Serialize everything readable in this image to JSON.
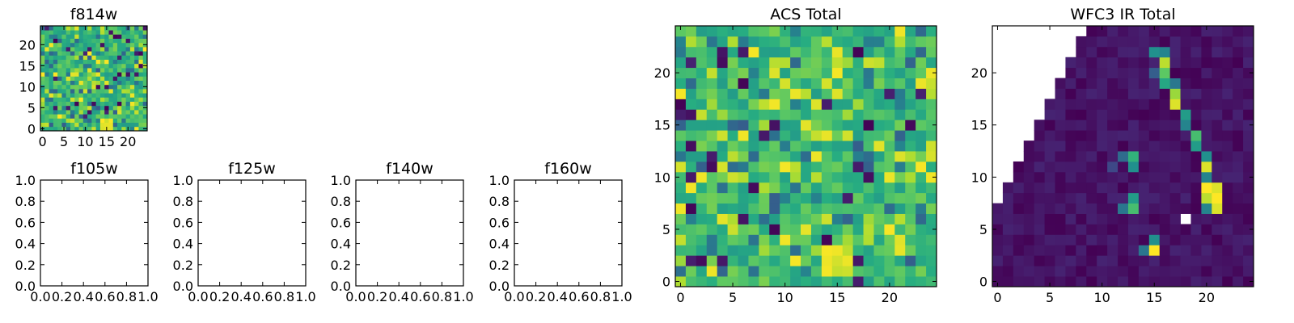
{
  "chart_data": [
    {
      "id": "f814w",
      "type": "heatmap",
      "title": "f814w",
      "grid_size": 25,
      "xlim": [
        -0.5,
        24.5
      ],
      "ylim": [
        -0.5,
        24.5
      ],
      "xticks": [
        0,
        5,
        10,
        15,
        20
      ],
      "yticks": [
        0,
        5,
        10,
        15,
        20
      ],
      "colormap": "viridis",
      "missing_region": "none",
      "values": "pseudo-random noise, mostly 0.55-0.85 of colour scale with sparse low (dark purple) pixels and a bright yellow clump near x=15, y=1"
    },
    {
      "id": "f105w",
      "type": "empty",
      "title": "f105w",
      "xlim": [
        0.0,
        1.0
      ],
      "ylim": [
        0.0,
        1.0
      ],
      "xticks": [
        "0.0",
        "0.2",
        "0.4",
        "0.6",
        "0.8",
        "1.0"
      ],
      "yticks": [
        "0.0",
        "0.2",
        "0.4",
        "0.6",
        "0.8",
        "1.0"
      ]
    },
    {
      "id": "f125w",
      "type": "empty",
      "title": "f125w",
      "xlim": [
        0.0,
        1.0
      ],
      "ylim": [
        0.0,
        1.0
      ],
      "xticks": [
        "0.0",
        "0.2",
        "0.4",
        "0.6",
        "0.8",
        "1.0"
      ],
      "yticks": [
        "0.0",
        "0.2",
        "0.4",
        "0.6",
        "0.8",
        "1.0"
      ]
    },
    {
      "id": "f140w",
      "type": "empty",
      "title": "f140w",
      "xlim": [
        0.0,
        1.0
      ],
      "ylim": [
        0.0,
        1.0
      ],
      "xticks": [
        "0.0",
        "0.2",
        "0.4",
        "0.6",
        "0.8",
        "1.0"
      ],
      "yticks": [
        "0.0",
        "0.2",
        "0.4",
        "0.6",
        "0.8",
        "1.0"
      ]
    },
    {
      "id": "f160w",
      "type": "empty",
      "title": "f160w",
      "xlim": [
        0.0,
        1.0
      ],
      "ylim": [
        0.0,
        1.0
      ],
      "xticks": [
        "0.0",
        "0.2",
        "0.4",
        "0.6",
        "0.8",
        "1.0"
      ],
      "yticks": [
        "0.0",
        "0.2",
        "0.4",
        "0.6",
        "0.8",
        "1.0"
      ]
    },
    {
      "id": "acs",
      "type": "heatmap",
      "title": "ACS Total",
      "grid_size": 25,
      "xlim": [
        -0.5,
        24.5
      ],
      "ylim": [
        -0.5,
        24.5
      ],
      "xticks": [
        0,
        5,
        10,
        15,
        20
      ],
      "yticks": [
        0,
        5,
        10,
        15,
        20
      ],
      "colormap": "viridis",
      "missing_region": "none",
      "values": "pseudo-random noise, mostly green-yellow (0.55-0.85) with sparse dark purple pixels and a yellow clump near x=15, y=2"
    },
    {
      "id": "wfc3",
      "type": "heatmap",
      "title": "WFC3 IR Total",
      "grid_size": 25,
      "xlim": [
        -0.5,
        24.5
      ],
      "ylim": [
        -0.5,
        24.5
      ],
      "xticks": [
        0,
        5,
        10,
        15,
        20
      ],
      "yticks": [
        0,
        5,
        10,
        15,
        20
      ],
      "colormap": "viridis",
      "missing_region": "upper-left triangle (no coverage) plus one blank pixel at x=18, y=6",
      "values": "near-zero background (dark purple) with a bright diagonal arc from (15,22) to (21,7), a blob at (13,12) and (13,8), and a bright pixel at (15,3)",
      "bright_features": [
        {
          "x": 15,
          "y": 22,
          "v": 0.5
        },
        {
          "x": 16,
          "y": 22,
          "v": 0.45
        },
        {
          "x": 16,
          "y": 21,
          "v": 0.9
        },
        {
          "x": 16,
          "y": 20,
          "v": 0.75
        },
        {
          "x": 16,
          "y": 19,
          "v": 0.6
        },
        {
          "x": 17,
          "y": 19,
          "v": 0.4
        },
        {
          "x": 17,
          "y": 18,
          "v": 0.85
        },
        {
          "x": 17,
          "y": 17,
          "v": 0.95
        },
        {
          "x": 18,
          "y": 16,
          "v": 0.55
        },
        {
          "x": 18,
          "y": 15,
          "v": 0.45
        },
        {
          "x": 19,
          "y": 14,
          "v": 0.7
        },
        {
          "x": 19,
          "y": 13,
          "v": 0.55
        },
        {
          "x": 20,
          "y": 12,
          "v": 0.5
        },
        {
          "x": 20,
          "y": 11,
          "v": 0.95
        },
        {
          "x": 20,
          "y": 10,
          "v": 0.45
        },
        {
          "x": 20,
          "y": 9,
          "v": 1.0
        },
        {
          "x": 21,
          "y": 9,
          "v": 0.95
        },
        {
          "x": 20,
          "y": 8,
          "v": 0.9
        },
        {
          "x": 21,
          "y": 8,
          "v": 1.0
        },
        {
          "x": 21,
          "y": 7,
          "v": 0.95
        },
        {
          "x": 20,
          "y": 7,
          "v": 0.45
        },
        {
          "x": 13,
          "y": 12,
          "v": 0.65
        },
        {
          "x": 13,
          "y": 11,
          "v": 0.5
        },
        {
          "x": 12,
          "y": 12,
          "v": 0.35
        },
        {
          "x": 13,
          "y": 8,
          "v": 0.55
        },
        {
          "x": 13,
          "y": 7,
          "v": 0.7
        },
        {
          "x": 12,
          "y": 7,
          "v": 0.4
        },
        {
          "x": 15,
          "y": 3,
          "v": 1.0
        },
        {
          "x": 15,
          "y": 4,
          "v": 0.5
        },
        {
          "x": 14,
          "y": 3,
          "v": 0.4
        },
        {
          "x": 11,
          "y": 11,
          "v": 0.22
        },
        {
          "x": 15,
          "y": 20,
          "v": 0.3
        }
      ]
    }
  ]
}
